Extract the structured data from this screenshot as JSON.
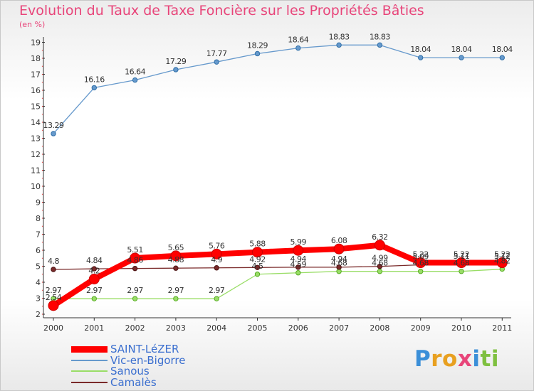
{
  "chart_data": {
    "type": "line",
    "title": "Evolution du Taux de Taxe Foncière sur les Propriétés Bâties",
    "subtitle": "(en %)",
    "x": [
      "2000",
      "2001",
      "2002",
      "2003",
      "2004",
      "2005",
      "2006",
      "2007",
      "2008",
      "2009",
      "2010",
      "2011"
    ],
    "y_ticks": [
      2,
      3,
      4,
      5,
      6,
      7,
      8,
      9,
      10,
      11,
      12,
      13,
      14,
      15,
      16,
      17,
      18,
      19
    ],
    "ylim": [
      2,
      19
    ],
    "grid": false,
    "legend_position": "bottom-left",
    "series": [
      {
        "name": "SAINT-LéZER",
        "color": "#ff0000",
        "width": 8,
        "values": [
          2.54,
          4.2,
          5.51,
          5.65,
          5.76,
          5.88,
          5.99,
          6.08,
          6.32,
          5.22,
          5.22,
          5.22
        ],
        "labels": [
          "2.54",
          "4.2",
          "5.51",
          "5.65",
          "5.76",
          "5.88",
          "5.99",
          "6.08",
          "6.32",
          "5.22",
          "5.22",
          "5.22"
        ]
      },
      {
        "name": "Vic-en-Bigorre",
        "color": "#6699cc",
        "width": 1.3,
        "values": [
          13.29,
          16.16,
          16.64,
          17.29,
          17.77,
          18.29,
          18.64,
          18.83,
          18.83,
          18.04,
          18.04,
          18.04
        ],
        "labels": [
          "13.29",
          "16.16",
          "16.64",
          "17.29",
          "17.77",
          "18.29",
          "18.64",
          "18.83",
          "18.83",
          "18.04",
          "18.04",
          "18.04"
        ]
      },
      {
        "name": "Sanous",
        "color": "#99dd66",
        "width": 1.3,
        "values": [
          2.97,
          2.97,
          2.97,
          2.97,
          2.97,
          4.5,
          4.59,
          4.68,
          4.68,
          4.68,
          4.68,
          4.82
        ],
        "labels": [
          "2.97",
          "2.97",
          "2.97",
          "2.97",
          "2.97",
          "4.5",
          "4.59",
          "4.68",
          "4.68",
          "4.68",
          "4.68",
          "4.82"
        ]
      },
      {
        "name": "Camalès",
        "color": "#7a2a2a",
        "width": 1.3,
        "values": [
          4.8,
          4.84,
          4.86,
          4.88,
          4.9,
          4.92,
          4.94,
          4.94,
          4.99,
          5.09,
          5.11,
          5.12
        ],
        "labels": [
          "4.8",
          "4.84",
          "4.86",
          "4.88",
          "4.9",
          "4.92",
          "4.94",
          "4.94",
          "4.99",
          "5.09",
          "5.11",
          "5.12"
        ]
      }
    ]
  },
  "logo": {
    "text": "Proxiti",
    "letters": [
      {
        "ch": "P",
        "color": "#3b8fd8"
      },
      {
        "ch": "r",
        "color": "#e8a020"
      },
      {
        "ch": "o",
        "color": "#e8a020"
      },
      {
        "ch": "x",
        "color": "#e8457a"
      },
      {
        "ch": "i",
        "color": "#3b8fd8"
      },
      {
        "ch": "t",
        "color": "#7fc040"
      },
      {
        "ch": "i",
        "color": "#7fc040"
      }
    ]
  }
}
